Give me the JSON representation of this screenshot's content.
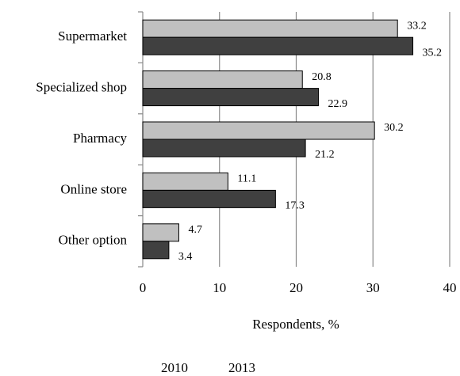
{
  "chart_data": {
    "type": "bar",
    "orientation": "horizontal",
    "categories": [
      "Supermarket",
      "Specialized shop",
      "Pharmacy",
      "Online store",
      "Other option"
    ],
    "series": [
      {
        "name": "2010",
        "color": "#c0c0c0",
        "values": [
          33.2,
          20.8,
          30.2,
          11.1,
          4.7
        ]
      },
      {
        "name": "2013",
        "color": "#404040",
        "values": [
          35.2,
          22.9,
          21.2,
          17.3,
          3.4
        ]
      }
    ],
    "xlabel": "Respondents, %",
    "xlim": [
      0,
      40
    ],
    "xticks": [
      0,
      10,
      20,
      30,
      40
    ],
    "grid": true,
    "legend": "bottom"
  }
}
